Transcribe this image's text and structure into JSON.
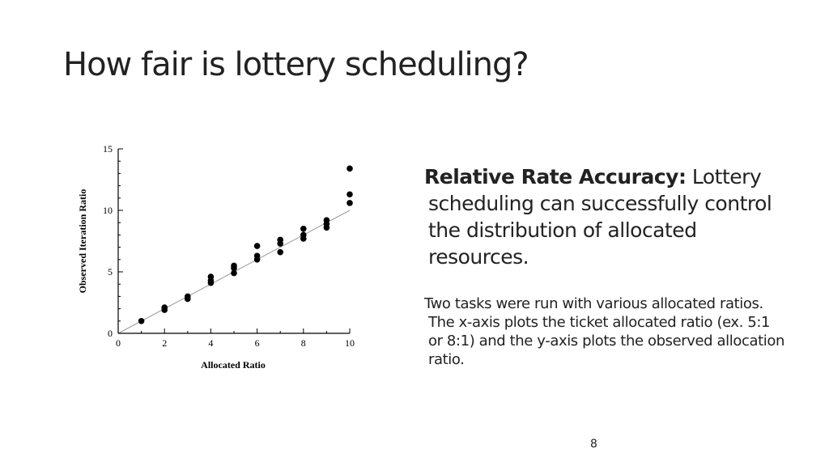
{
  "slide": {
    "title": "How fair is lottery scheduling?",
    "page_number": "8"
  },
  "text_panel": {
    "main_lead": "Relative Rate Accuracy:",
    "main_body": " Lottery scheduling can successfully control the distribution of allocated resources.",
    "explanation": "Two tasks were run with various allocated ratios. The x-axis plots the ticket allocated ratio (ex. 5:1 or 8:1) and the y-axis plots the observed allocation ratio."
  },
  "chart_data": {
    "type": "scatter",
    "xlabel": "Allocated Ratio",
    "ylabel": "Observed Iteration Ratio",
    "xlim": [
      0,
      10
    ],
    "ylim": [
      0,
      15
    ],
    "x_ticks": [
      0,
      2,
      4,
      6,
      8,
      10
    ],
    "y_ticks": [
      0,
      5,
      10,
      15
    ],
    "grid": false,
    "reference_line": {
      "from": [
        0,
        0
      ],
      "to": [
        10,
        10
      ]
    },
    "points": [
      {
        "x": 1,
        "y": 1.0
      },
      {
        "x": 2,
        "y": 1.9
      },
      {
        "x": 2,
        "y": 2.1
      },
      {
        "x": 3,
        "y": 2.8
      },
      {
        "x": 3,
        "y": 3.0
      },
      {
        "x": 4,
        "y": 4.1
      },
      {
        "x": 4,
        "y": 4.3
      },
      {
        "x": 4,
        "y": 4.6
      },
      {
        "x": 5,
        "y": 4.9
      },
      {
        "x": 5,
        "y": 5.3
      },
      {
        "x": 5,
        "y": 5.5
      },
      {
        "x": 6,
        "y": 6.0
      },
      {
        "x": 6,
        "y": 6.3
      },
      {
        "x": 6,
        "y": 7.1
      },
      {
        "x": 7,
        "y": 6.6
      },
      {
        "x": 7,
        "y": 7.3
      },
      {
        "x": 7,
        "y": 7.6
      },
      {
        "x": 8,
        "y": 7.7
      },
      {
        "x": 8,
        "y": 8.0
      },
      {
        "x": 8,
        "y": 8.5
      },
      {
        "x": 9,
        "y": 8.6
      },
      {
        "x": 9,
        "y": 8.9
      },
      {
        "x": 9,
        "y": 9.2
      },
      {
        "x": 10,
        "y": 10.6
      },
      {
        "x": 10,
        "y": 11.3
      },
      {
        "x": 10,
        "y": 13.4
      }
    ],
    "colors": {
      "points": "#000000",
      "reference_line": "#999999",
      "axes": "#000000"
    }
  }
}
